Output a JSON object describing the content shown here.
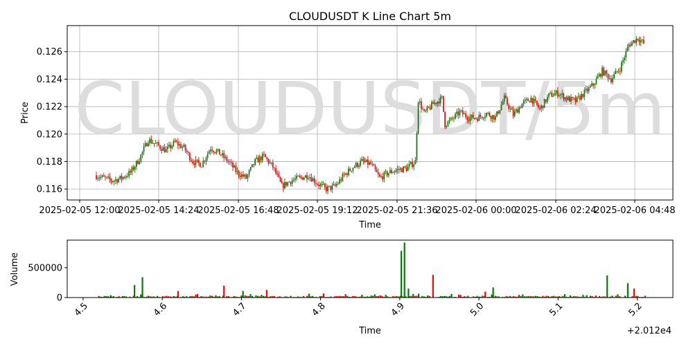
{
  "chart_data": [
    {
      "type": "candlestick",
      "title": "CLOUDUSDT K Line Chart 5m",
      "watermark": "CLOUDUSDT/5m",
      "xlabel": "Time",
      "ylabel": "Price",
      "ylim": [
        0.1152,
        0.1279
      ],
      "grid": true,
      "colors": {
        "up": "#008000",
        "down": "#ff0000",
        "watermark": "#dddddd",
        "grid": "#b0b0b0"
      },
      "time_ticks": [
        "2025-02-05 12:00",
        "2025-02-05 14:24",
        "2025-02-05 16:48",
        "2025-02-05 19:12",
        "2025-02-05 21:36",
        "2025-02-06 00:00",
        "2025-02-06 02:24",
        "2025-02-06 04:48"
      ],
      "yticks": [
        "0.116",
        "0.118",
        "0.120",
        "0.122",
        "0.124",
        "0.126"
      ],
      "ytick_values": [
        0.116,
        0.118,
        0.12,
        0.122,
        0.124,
        0.126
      ],
      "price_path": [
        [
          0,
          0.117
        ],
        [
          6,
          0.1168
        ],
        [
          12,
          0.1166
        ],
        [
          18,
          0.1168
        ],
        [
          24,
          0.1172
        ],
        [
          30,
          0.1182
        ],
        [
          36,
          0.1196
        ],
        [
          42,
          0.1192
        ],
        [
          48,
          0.1188
        ],
        [
          54,
          0.1194
        ],
        [
          60,
          0.119
        ],
        [
          66,
          0.118
        ],
        [
          72,
          0.1178
        ],
        [
          78,
          0.119
        ],
        [
          84,
          0.1186
        ],
        [
          90,
          0.118
        ],
        [
          96,
          0.1172
        ],
        [
          102,
          0.1168
        ],
        [
          108,
          0.118
        ],
        [
          114,
          0.1184
        ],
        [
          120,
          0.1176
        ],
        [
          126,
          0.1162
        ],
        [
          132,
          0.1166
        ],
        [
          138,
          0.1168
        ],
        [
          144,
          0.117
        ],
        [
          150,
          0.1164
        ],
        [
          156,
          0.116
        ],
        [
          162,
          0.1162
        ],
        [
          168,
          0.117
        ],
        [
          174,
          0.1176
        ],
        [
          180,
          0.118
        ],
        [
          186,
          0.1178
        ],
        [
          192,
          0.1168
        ],
        [
          198,
          0.1172
        ],
        [
          204,
          0.1174
        ],
        [
          210,
          0.1175
        ],
        [
          216,
          0.118
        ],
        [
          218,
          0.1225
        ],
        [
          222,
          0.1215
        ],
        [
          228,
          0.1222
        ],
        [
          234,
          0.1226
        ],
        [
          236,
          0.1207
        ],
        [
          240,
          0.121
        ],
        [
          246,
          0.1216
        ],
        [
          252,
          0.1212
        ],
        [
          258,
          0.1212
        ],
        [
          264,
          0.1215
        ],
        [
          270,
          0.1212
        ],
        [
          276,
          0.1226
        ],
        [
          282,
          0.1214
        ],
        [
          288,
          0.1222
        ],
        [
          294,
          0.1226
        ],
        [
          300,
          0.1218
        ],
        [
          306,
          0.1228
        ],
        [
          312,
          0.123
        ],
        [
          318,
          0.1226
        ],
        [
          324,
          0.1224
        ],
        [
          330,
          0.123
        ],
        [
          336,
          0.1236
        ],
        [
          342,
          0.1246
        ],
        [
          348,
          0.124
        ],
        [
          354,
          0.1248
        ],
        [
          360,
          0.1265
        ],
        [
          366,
          0.127
        ],
        [
          370,
          0.1266
        ]
      ],
      "volume": {
        "ylabel": "Volume",
        "xlabel": "Time",
        "yticks": [
          "0",
          "500000"
        ],
        "ytick_values": [
          0,
          500000
        ],
        "ylim": [
          0,
          960000
        ],
        "xlim": [
          20124.48,
          20125.245
        ],
        "xticks": [
          "4.5",
          "4.6",
          "4.7",
          "4.8",
          "4.9",
          "5.0",
          "5.1",
          "5.2"
        ],
        "xtick_values": [
          20124.5,
          20124.6,
          20124.7,
          20124.8,
          20124.9,
          20125.0,
          20125.1,
          20125.2
        ],
        "offset_text": "+2.012e4",
        "spikes": [
          {
            "x": 20124.535,
            "v": 40000,
            "dir": "up"
          },
          {
            "x": 20124.565,
            "v": 210000,
            "dir": "up"
          },
          {
            "x": 20124.575,
            "v": 340000,
            "dir": "up"
          },
          {
            "x": 20124.62,
            "v": 110000,
            "dir": "down"
          },
          {
            "x": 20124.678,
            "v": 200000,
            "dir": "down"
          },
          {
            "x": 20124.702,
            "v": 110000,
            "dir": "up"
          },
          {
            "x": 20124.732,
            "v": 130000,
            "dir": "down"
          },
          {
            "x": 20124.902,
            "v": 780000,
            "dir": "up"
          },
          {
            "x": 20124.906,
            "v": 920000,
            "dir": "up"
          },
          {
            "x": 20124.911,
            "v": 150000,
            "dir": "up"
          },
          {
            "x": 20124.942,
            "v": 380000,
            "dir": "down"
          },
          {
            "x": 20125.008,
            "v": 100000,
            "dir": "down"
          },
          {
            "x": 20125.018,
            "v": 170000,
            "dir": "up"
          },
          {
            "x": 20125.162,
            "v": 370000,
            "dir": "up"
          },
          {
            "x": 20125.188,
            "v": 240000,
            "dir": "up"
          },
          {
            "x": 20125.196,
            "v": 150000,
            "dir": "down"
          }
        ]
      }
    }
  ]
}
